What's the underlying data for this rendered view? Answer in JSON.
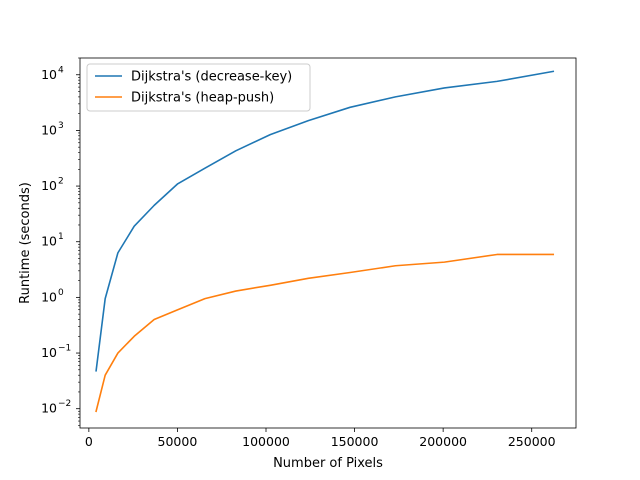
{
  "chart_data": {
    "type": "line",
    "title": "",
    "xlabel": "Number of Pixels",
    "ylabel": "Runtime (seconds)",
    "yscale": "log",
    "xlim": [
      -5000,
      275000
    ],
    "ylim": [
      0.0045,
      20000
    ],
    "x_ticks": [
      0,
      50000,
      100000,
      150000,
      200000,
      250000
    ],
    "x_tick_labels": [
      "0",
      "50000",
      "100000",
      "150000",
      "200000",
      "250000"
    ],
    "y_ticks": [
      0.01,
      0.1,
      1,
      10,
      100,
      1000,
      10000
    ],
    "y_tick_labels": [
      "10",
      "10",
      "10",
      "10",
      "10",
      "10",
      "10"
    ],
    "y_tick_exponents": [
      "−2",
      "−1",
      "0",
      "1",
      "2",
      "3",
      "4"
    ],
    "grid": false,
    "legend_position": "top-left",
    "series": [
      {
        "name": "Dijkstra's (decrease-key)",
        "color": "#1f77b4",
        "x": [
          4096,
          9216,
          16384,
          25600,
          36864,
          50176,
          65536,
          82944,
          102400,
          123904,
          147456,
          173056,
          200704,
          230400,
          262144
        ],
        "y": [
          0.048,
          0.95,
          6.3,
          19,
          45,
          110,
          210,
          430,
          840,
          1500,
          2600,
          4000,
          5800,
          7600,
          11500
        ]
      },
      {
        "name": "Dijkstra's (heap-push)",
        "color": "#ff7f0e",
        "x": [
          4096,
          9216,
          16384,
          25600,
          36864,
          50176,
          65536,
          82944,
          102400,
          123904,
          147456,
          173056,
          200704,
          230400,
          262144
        ],
        "y": [
          0.009,
          0.04,
          0.1,
          0.2,
          0.4,
          0.6,
          0.95,
          1.3,
          1.65,
          2.2,
          2.8,
          3.7,
          4.3,
          5.9,
          5.9
        ]
      }
    ]
  }
}
